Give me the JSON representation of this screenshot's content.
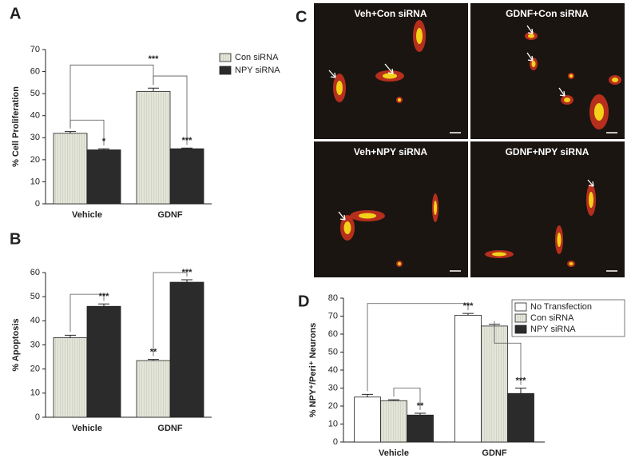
{
  "chart_data": [
    {
      "type": "bar",
      "panel": "A",
      "y_label": "% Cell Proliferation",
      "categories": [
        "Vehicle",
        "GDNF"
      ],
      "series": [
        {
          "name": "Con siRNA",
          "color": "#dcdfd2",
          "values": [
            32,
            51
          ],
          "errors": [
            0.8,
            1.5
          ]
        },
        {
          "name": "NPY siRNA",
          "color": "#2b2b2b",
          "values": [
            24.5,
            25
          ],
          "errors": [
            0.5,
            0.3
          ]
        }
      ],
      "ylim": [
        0,
        70
      ],
      "yticks": [
        0,
        10,
        20,
        30,
        40,
        50,
        60,
        70
      ],
      "annotations": [
        "***",
        "*",
        "***"
      ],
      "legend": "upper right"
    },
    {
      "type": "bar",
      "panel": "B",
      "y_label": "% Apoptosis",
      "categories": [
        "Vehicle",
        "GDNF"
      ],
      "series": [
        {
          "name": "Con siRNA",
          "color": "#dcdfd2",
          "values": [
            33,
            23.5
          ],
          "errors": [
            1,
            0.5
          ]
        },
        {
          "name": "NPY siRNA",
          "color": "#2b2b2b",
          "values": [
            46,
            56
          ],
          "errors": [
            1,
            1
          ]
        }
      ],
      "ylim": [
        0,
        60
      ],
      "yticks": [
        0,
        10,
        20,
        30,
        40,
        50,
        60
      ],
      "annotations": [
        "***",
        "**",
        "***"
      ]
    },
    {
      "type": "bar",
      "panel": "D",
      "y_label": "% NPY⁺/Peri⁺ Neurons",
      "categories": [
        "Vehicle",
        "GDNF"
      ],
      "series": [
        {
          "name": "No Transfection",
          "color": "#ffffff",
          "values": [
            25,
            70.5
          ],
          "errors": [
            1.5,
            1
          ]
        },
        {
          "name": "Con siRNA",
          "color": "#dcdfd2",
          "values": [
            23,
            64.5
          ],
          "errors": [
            0.5,
            1
          ]
        },
        {
          "name": "NPY siRNA",
          "color": "#2b2b2b",
          "values": [
            15,
            27
          ],
          "errors": [
            1,
            3
          ]
        }
      ],
      "ylim": [
        0,
        80
      ],
      "yticks": [
        0,
        10,
        20,
        30,
        40,
        50,
        60,
        70,
        80
      ],
      "annotations": [
        "***",
        "**",
        "***"
      ],
      "legend": "upper right"
    }
  ],
  "panel_c": {
    "panel": "C",
    "images": [
      "Veh+Con siRNA",
      "GDNF+Con siRNA",
      "Veh+NPY siRNA",
      "GDNF+NPY siRNA"
    ]
  }
}
